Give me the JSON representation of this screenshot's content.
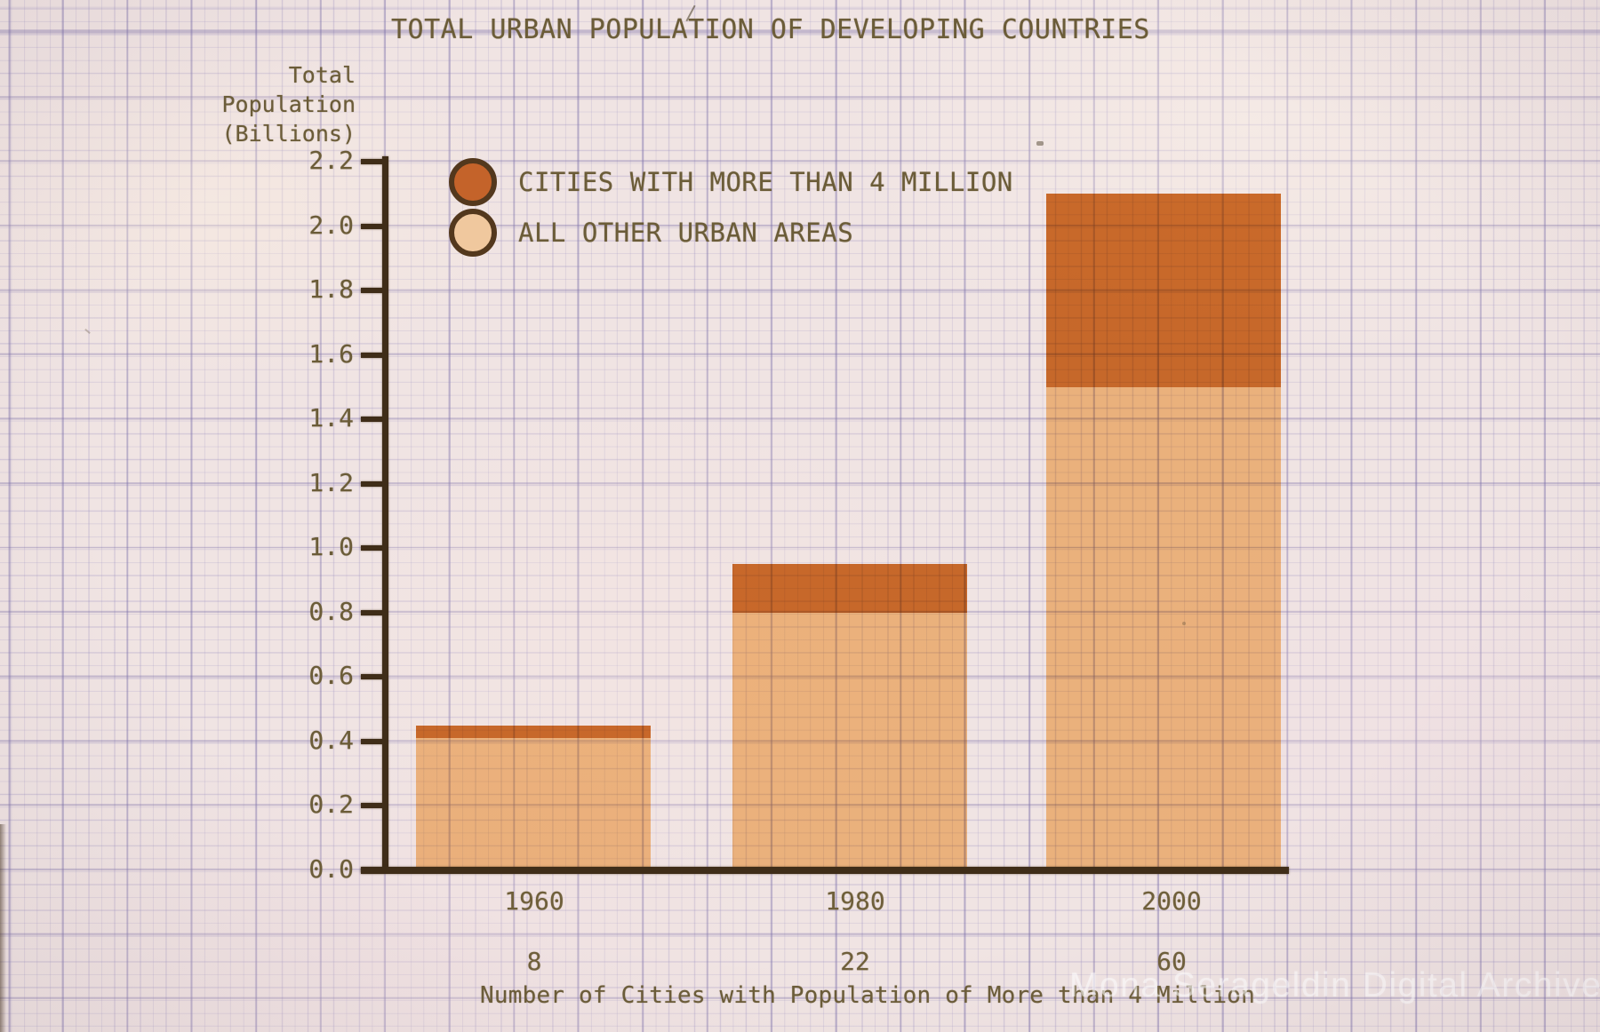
{
  "photo": {
    "watermark": "Mona Serageldin Digital Archive"
  },
  "title": "TOTAL URBAN POPULATION OF DEVELOPING COUNTRIES",
  "y_axis": {
    "label_lines": [
      "Total",
      "Population",
      "(Billions)"
    ],
    "ticks": [
      "2.2",
      "2.0",
      "1.8",
      "1.6",
      "1.4",
      "1.2",
      "1.0",
      "0.8",
      "0.6",
      "0.4",
      "0.2",
      "0.0"
    ]
  },
  "legend": [
    {
      "label": "CITIES WITH MORE THAN 4 MILLION",
      "color": "#c4632a"
    },
    {
      "label": "ALL OTHER URBAN AREAS",
      "color": "#f0c89e"
    }
  ],
  "x_axis": {
    "years": [
      "1960",
      "1980",
      "2000"
    ]
  },
  "footer": {
    "city_counts": [
      "8",
      "22",
      "60"
    ],
    "caption": "Number of Cities with Population of More than 4 Million"
  },
  "colors": {
    "paper": "#f0e4e3",
    "grid_minor": "#9a90c2",
    "grid_major": "#7c70a8",
    "axis": "#3f2d18",
    "text": "#6b5c38",
    "bar_dark": "#c8692c",
    "bar_light": "#ecb178",
    "bar_dark_film": "#d3742f",
    "bar_light_film": "#f9c68b",
    "legend_ring": "#53381d",
    "watermark": "rgba(255,255,255,0.55)"
  },
  "chart_data": {
    "type": "bar",
    "stacked": true,
    "title": "TOTAL URBAN POPULATION OF DEVELOPING COUNTRIES",
    "ylabel": "Total Population (Billions)",
    "xlabel": "Number of Cities with Population of More than 4 Million",
    "categories": [
      "1960",
      "1980",
      "2000"
    ],
    "series": [
      {
        "name": "CITIES WITH MORE THAN 4 MILLION",
        "color": "#c8692c",
        "values": [
          0.04,
          0.15,
          0.6
        ]
      },
      {
        "name": "ALL OTHER URBAN AREAS",
        "color": "#ecb178",
        "values": [
          0.41,
          0.8,
          1.5
        ]
      }
    ],
    "totals": [
      0.45,
      0.95,
      2.1
    ],
    "cities_over_4m_count": [
      8,
      22,
      60
    ],
    "ylim": [
      0,
      2.2
    ],
    "ytick_step": 0.2,
    "grid": "graph-paper",
    "legend_position": "upper-left-inside"
  }
}
